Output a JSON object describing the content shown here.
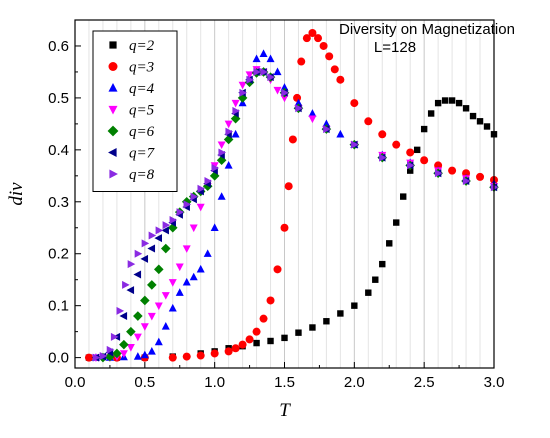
{
  "chart_data": {
    "type": "scatter",
    "title": "",
    "xlabel": "T",
    "ylabel": "div",
    "xlim": [
      0.0,
      3.0
    ],
    "ylim": [
      -0.02,
      0.65
    ],
    "x_ticks": [
      "0.0",
      "0.5",
      "1.0",
      "1.5",
      "2.0",
      "2.5",
      "3.0"
    ],
    "y_ticks": [
      "0.0",
      "0.1",
      "0.2",
      "0.3",
      "0.4",
      "0.5",
      "0.6"
    ],
    "grid": "vertical",
    "legend_position": "top-left",
    "annotations": [
      "Diversity on Magnetization",
      "L=128"
    ],
    "series": [
      {
        "name": "q=2",
        "color": "#000000",
        "marker": "square",
        "points": [
          [
            0.1,
            0.0
          ],
          [
            0.3,
            0.0
          ],
          [
            0.5,
            0.0
          ],
          [
            0.7,
            0.002
          ],
          [
            0.9,
            0.008
          ],
          [
            1.0,
            0.012
          ],
          [
            1.1,
            0.018
          ],
          [
            1.2,
            0.022
          ],
          [
            1.3,
            0.028
          ],
          [
            1.4,
            0.032
          ],
          [
            1.5,
            0.038
          ],
          [
            1.6,
            0.048
          ],
          [
            1.7,
            0.058
          ],
          [
            1.8,
            0.07
          ],
          [
            1.9,
            0.085
          ],
          [
            2.0,
            0.1
          ],
          [
            2.1,
            0.125
          ],
          [
            2.15,
            0.15
          ],
          [
            2.2,
            0.18
          ],
          [
            2.25,
            0.22
          ],
          [
            2.3,
            0.26
          ],
          [
            2.35,
            0.31
          ],
          [
            2.4,
            0.36
          ],
          [
            2.45,
            0.4
          ],
          [
            2.5,
            0.44
          ],
          [
            2.55,
            0.47
          ],
          [
            2.6,
            0.49
          ],
          [
            2.65,
            0.495
          ],
          [
            2.7,
            0.495
          ],
          [
            2.75,
            0.49
          ],
          [
            2.8,
            0.48
          ],
          [
            2.85,
            0.465
          ],
          [
            2.9,
            0.455
          ],
          [
            2.95,
            0.445
          ],
          [
            3.0,
            0.43
          ]
        ]
      },
      {
        "name": "q=3",
        "color": "#ff0000",
        "marker": "circle",
        "points": [
          [
            0.1,
            0.0
          ],
          [
            0.3,
            0.0
          ],
          [
            0.5,
            0.0
          ],
          [
            0.7,
            0.0
          ],
          [
            0.8,
            0.002
          ],
          [
            0.9,
            0.004
          ],
          [
            1.0,
            0.008
          ],
          [
            1.1,
            0.012
          ],
          [
            1.15,
            0.018
          ],
          [
            1.2,
            0.025
          ],
          [
            1.25,
            0.035
          ],
          [
            1.3,
            0.05
          ],
          [
            1.35,
            0.075
          ],
          [
            1.4,
            0.11
          ],
          [
            1.45,
            0.17
          ],
          [
            1.5,
            0.25
          ],
          [
            1.53,
            0.33
          ],
          [
            1.56,
            0.42
          ],
          [
            1.59,
            0.5
          ],
          [
            1.62,
            0.57
          ],
          [
            1.66,
            0.615
          ],
          [
            1.7,
            0.625
          ],
          [
            1.74,
            0.615
          ],
          [
            1.78,
            0.6
          ],
          [
            1.82,
            0.58
          ],
          [
            1.86,
            0.555
          ],
          [
            1.9,
            0.535
          ],
          [
            2.0,
            0.49
          ],
          [
            2.1,
            0.455
          ],
          [
            2.2,
            0.43
          ],
          [
            2.3,
            0.41
          ],
          [
            2.4,
            0.395
          ],
          [
            2.5,
            0.38
          ],
          [
            2.6,
            0.37
          ],
          [
            2.7,
            0.36
          ],
          [
            2.8,
            0.355
          ],
          [
            2.9,
            0.348
          ],
          [
            3.0,
            0.342
          ]
        ]
      },
      {
        "name": "q=4",
        "color": "#0000ff",
        "marker": "triangle-up",
        "points": [
          [
            0.15,
            0.0
          ],
          [
            0.25,
            0.0
          ],
          [
            0.35,
            0.001
          ],
          [
            0.45,
            0.002
          ],
          [
            0.5,
            0.005
          ],
          [
            0.55,
            0.012
          ],
          [
            0.6,
            0.03
          ],
          [
            0.65,
            0.06
          ],
          [
            0.7,
            0.095
          ],
          [
            0.75,
            0.125
          ],
          [
            0.8,
            0.145
          ],
          [
            0.85,
            0.155
          ],
          [
            0.9,
            0.17
          ],
          [
            0.95,
            0.2
          ],
          [
            1.0,
            0.25
          ],
          [
            1.05,
            0.31
          ],
          [
            1.1,
            0.37
          ],
          [
            1.15,
            0.43
          ],
          [
            1.2,
            0.49
          ],
          [
            1.25,
            0.54
          ],
          [
            1.3,
            0.575
          ],
          [
            1.35,
            0.585
          ],
          [
            1.4,
            0.575
          ],
          [
            1.45,
            0.55
          ],
          [
            1.5,
            0.52
          ],
          [
            1.6,
            0.49
          ],
          [
            1.7,
            0.47
          ],
          [
            1.8,
            0.45
          ],
          [
            1.9,
            0.43
          ],
          [
            2.0,
            0.41
          ],
          [
            2.2,
            0.39
          ],
          [
            2.4,
            0.375
          ],
          [
            2.6,
            0.36
          ],
          [
            2.8,
            0.345
          ],
          [
            3.0,
            0.335
          ]
        ]
      },
      {
        "name": "q=5",
        "color": "#ff00ff",
        "marker": "triangle-down",
        "points": [
          [
            0.15,
            0.0
          ],
          [
            0.25,
            0.0
          ],
          [
            0.3,
            0.002
          ],
          [
            0.35,
            0.008
          ],
          [
            0.4,
            0.02
          ],
          [
            0.45,
            0.04
          ],
          [
            0.5,
            0.06
          ],
          [
            0.55,
            0.08
          ],
          [
            0.6,
            0.1
          ],
          [
            0.65,
            0.12
          ],
          [
            0.7,
            0.145
          ],
          [
            0.75,
            0.175
          ],
          [
            0.8,
            0.21
          ],
          [
            0.85,
            0.25
          ],
          [
            0.9,
            0.29
          ],
          [
            0.95,
            0.33
          ],
          [
            1.0,
            0.37
          ],
          [
            1.05,
            0.41
          ],
          [
            1.1,
            0.45
          ],
          [
            1.15,
            0.49
          ],
          [
            1.2,
            0.525
          ],
          [
            1.25,
            0.545
          ],
          [
            1.3,
            0.555
          ],
          [
            1.35,
            0.55
          ],
          [
            1.4,
            0.535
          ],
          [
            1.45,
            0.515
          ],
          [
            1.5,
            0.5
          ],
          [
            1.6,
            0.48
          ],
          [
            1.7,
            0.46
          ],
          [
            1.8,
            0.44
          ],
          [
            2.0,
            0.41
          ],
          [
            2.2,
            0.39
          ],
          [
            2.4,
            0.375
          ],
          [
            2.6,
            0.36
          ],
          [
            2.8,
            0.345
          ],
          [
            3.0,
            0.33
          ]
        ]
      },
      {
        "name": "q=6",
        "color": "#008000",
        "marker": "diamond",
        "points": [
          [
            0.2,
            0.0
          ],
          [
            0.25,
            0.002
          ],
          [
            0.3,
            0.008
          ],
          [
            0.35,
            0.025
          ],
          [
            0.4,
            0.05
          ],
          [
            0.45,
            0.08
          ],
          [
            0.5,
            0.11
          ],
          [
            0.55,
            0.14
          ],
          [
            0.6,
            0.17
          ],
          [
            0.65,
            0.21
          ],
          [
            0.7,
            0.25
          ],
          [
            0.75,
            0.28
          ],
          [
            0.8,
            0.3
          ],
          [
            0.85,
            0.31
          ],
          [
            0.9,
            0.32
          ],
          [
            0.95,
            0.33
          ],
          [
            1.0,
            0.35
          ],
          [
            1.05,
            0.38
          ],
          [
            1.1,
            0.42
          ],
          [
            1.15,
            0.46
          ],
          [
            1.2,
            0.5
          ],
          [
            1.25,
            0.53
          ],
          [
            1.3,
            0.548
          ],
          [
            1.35,
            0.55
          ],
          [
            1.4,
            0.54
          ],
          [
            1.5,
            0.51
          ],
          [
            1.6,
            0.48
          ],
          [
            1.8,
            0.44
          ],
          [
            2.0,
            0.41
          ],
          [
            2.2,
            0.385
          ],
          [
            2.4,
            0.37
          ],
          [
            2.6,
            0.355
          ],
          [
            2.8,
            0.34
          ],
          [
            3.0,
            0.328
          ]
        ]
      },
      {
        "name": "q=7",
        "color": "#00008b",
        "marker": "triangle-left",
        "points": [
          [
            0.15,
            0.0
          ],
          [
            0.2,
            0.002
          ],
          [
            0.25,
            0.01
          ],
          [
            0.3,
            0.04
          ],
          [
            0.35,
            0.08
          ],
          [
            0.4,
            0.13
          ],
          [
            0.45,
            0.16
          ],
          [
            0.5,
            0.19
          ],
          [
            0.55,
            0.21
          ],
          [
            0.6,
            0.23
          ],
          [
            0.65,
            0.245
          ],
          [
            0.7,
            0.26
          ],
          [
            0.75,
            0.275
          ],
          [
            0.8,
            0.29
          ],
          [
            0.85,
            0.305
          ],
          [
            0.9,
            0.32
          ],
          [
            0.95,
            0.335
          ],
          [
            1.0,
            0.36
          ],
          [
            1.05,
            0.39
          ],
          [
            1.1,
            0.43
          ],
          [
            1.15,
            0.47
          ],
          [
            1.2,
            0.51
          ],
          [
            1.25,
            0.535
          ],
          [
            1.3,
            0.55
          ],
          [
            1.35,
            0.55
          ],
          [
            1.4,
            0.54
          ],
          [
            1.5,
            0.51
          ],
          [
            1.6,
            0.48
          ],
          [
            1.8,
            0.44
          ],
          [
            2.0,
            0.41
          ],
          [
            2.2,
            0.385
          ],
          [
            2.4,
            0.37
          ],
          [
            2.6,
            0.355
          ],
          [
            2.8,
            0.34
          ],
          [
            3.0,
            0.328
          ]
        ]
      },
      {
        "name": "q=8",
        "color": "#8a2be2",
        "marker": "triangle-right",
        "points": [
          [
            0.15,
            0.0
          ],
          [
            0.2,
            0.003
          ],
          [
            0.25,
            0.015
          ],
          [
            0.28,
            0.04
          ],
          [
            0.32,
            0.09
          ],
          [
            0.36,
            0.14
          ],
          [
            0.4,
            0.18
          ],
          [
            0.45,
            0.2
          ],
          [
            0.5,
            0.22
          ],
          [
            0.55,
            0.235
          ],
          [
            0.6,
            0.245
          ],
          [
            0.65,
            0.255
          ],
          [
            0.7,
            0.265
          ],
          [
            0.75,
            0.28
          ],
          [
            0.8,
            0.295
          ],
          [
            0.85,
            0.31
          ],
          [
            0.9,
            0.325
          ],
          [
            0.95,
            0.34
          ],
          [
            1.0,
            0.365
          ],
          [
            1.05,
            0.395
          ],
          [
            1.1,
            0.435
          ],
          [
            1.15,
            0.475
          ],
          [
            1.2,
            0.51
          ],
          [
            1.25,
            0.535
          ],
          [
            1.3,
            0.55
          ],
          [
            1.35,
            0.55
          ],
          [
            1.4,
            0.54
          ],
          [
            1.5,
            0.51
          ],
          [
            1.6,
            0.48
          ],
          [
            1.8,
            0.44
          ],
          [
            2.0,
            0.41
          ],
          [
            2.2,
            0.385
          ],
          [
            2.4,
            0.37
          ],
          [
            2.6,
            0.355
          ],
          [
            2.8,
            0.34
          ],
          [
            3.0,
            0.328
          ]
        ]
      }
    ]
  }
}
